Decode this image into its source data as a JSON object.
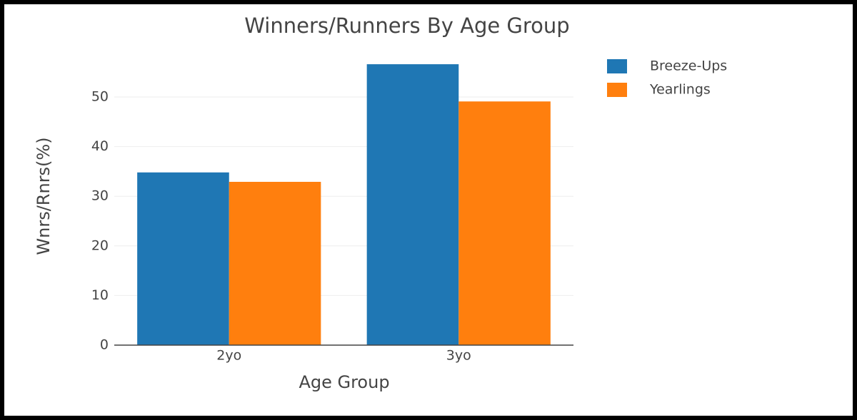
{
  "chart_data": {
    "type": "bar",
    "title": "Winners/Runners By Age Group",
    "x_label": "Age Group",
    "y_label": "Wnrs/Rnrs(%)",
    "categories": [
      "2yo",
      "3yo"
    ],
    "series": [
      {
        "name": "Breeze-Ups",
        "color": "#1f77b4",
        "values": [
          34.8,
          56.6
        ]
      },
      {
        "name": "Yearlings",
        "color": "#ff7f0e",
        "values": [
          32.9,
          49.1
        ]
      }
    ],
    "ylim": [
      0,
      59.6
    ],
    "yticks": [
      0,
      10,
      20,
      30,
      40,
      50
    ],
    "grid": true,
    "legend": "right"
  }
}
